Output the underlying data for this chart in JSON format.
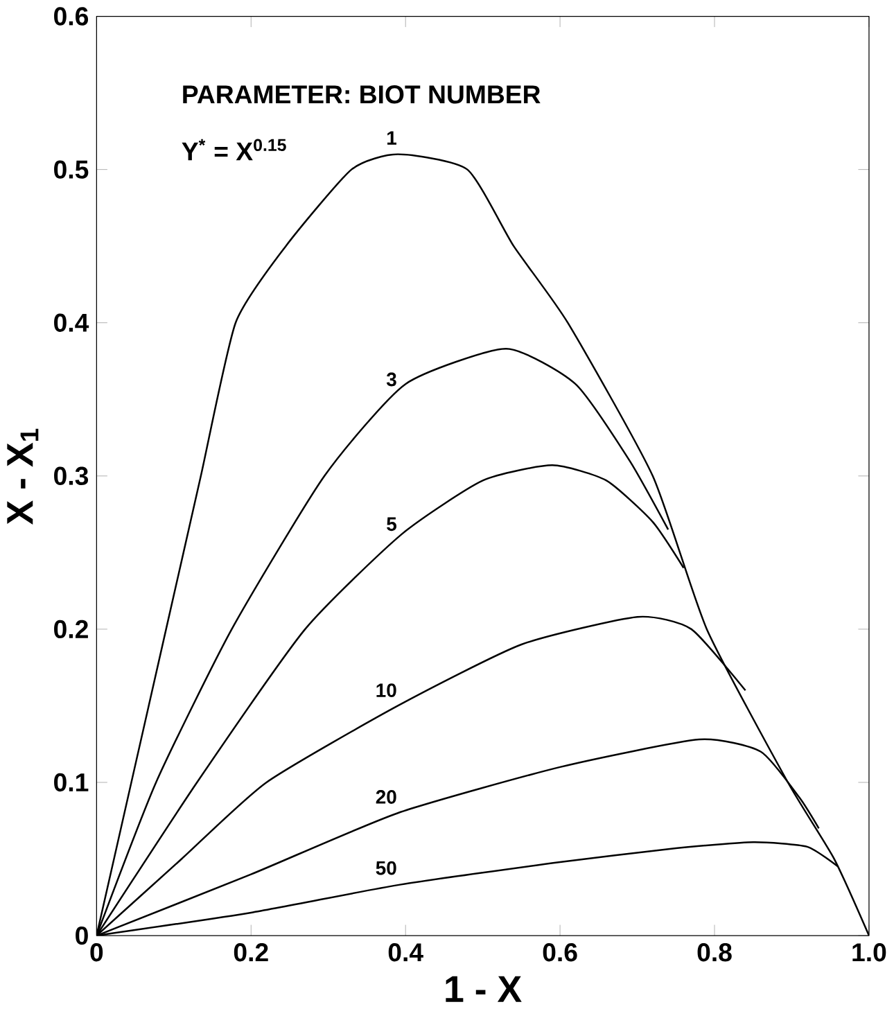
{
  "chart_data": {
    "type": "line",
    "xlabel": "1 - X",
    "ylabel": "X - X$_{1}$",
    "annotations": [
      "PARAMETER: BIOT NUMBER",
      "Y$^{*}$ = X$^{0.15}$"
    ],
    "xlim": [
      0,
      1
    ],
    "ylim": [
      0,
      0.6
    ],
    "xticks": [
      0,
      0.2,
      0.4,
      0.6,
      0.8,
      {
        "value": 1,
        "label": "1.0"
      }
    ],
    "yticks": [
      0,
      0.1,
      0.2,
      0.3,
      0.4,
      0.5,
      0.6
    ],
    "grid": false,
    "legend": false,
    "marker": "none",
    "line_style": "solid",
    "series": [
      {
        "name": "1",
        "color": "#000000",
        "x": [
          0,
          0.045,
          0.09,
          0.135,
          0.18,
          0.245,
          0.33,
          0.39,
          0.48,
          0.54,
          0.61,
          0.72,
          0.79,
          0.895,
          0.955,
          1
        ],
        "values": [
          0,
          0.1,
          0.2,
          0.3,
          0.4,
          0.45,
          0.5,
          0.51,
          0.5,
          0.45,
          0.4,
          0.3,
          0.2,
          0.1,
          0.05,
          0
        ]
      },
      {
        "name": "3",
        "color": "#000000",
        "x": [
          0,
          0.077,
          0.175,
          0.295,
          0.4,
          0.53,
          0.62,
          0.69,
          0.74
        ],
        "values": [
          0,
          0.1,
          0.2,
          0.3,
          0.36,
          0.383,
          0.36,
          0.31,
          0.265
        ]
      },
      {
        "name": "5",
        "color": "#000000",
        "x": [
          0,
          0.13,
          0.27,
          0.395,
          0.5,
          0.59,
          0.66,
          0.72,
          0.76
        ],
        "values": [
          0,
          0.1,
          0.2,
          0.262,
          0.297,
          0.307,
          0.297,
          0.27,
          0.24
        ]
      },
      {
        "name": "10",
        "color": "#000000",
        "x": [
          0,
          0.11,
          0.22,
          0.39,
          0.55,
          0.7,
          0.77,
          0.84
        ],
        "values": [
          0,
          0.05,
          0.1,
          0.15,
          0.19,
          0.208,
          0.2,
          0.16
        ]
      },
      {
        "name": "20",
        "color": "#000000",
        "x": [
          0,
          0.2,
          0.39,
          0.6,
          0.78,
          0.86,
          0.91,
          0.935
        ],
        "values": [
          0,
          0.04,
          0.08,
          0.11,
          0.128,
          0.12,
          0.09,
          0.07
        ]
      },
      {
        "name": "50",
        "color": "#000000",
        "x": [
          0,
          0.2,
          0.39,
          0.6,
          0.75,
          0.85,
          0.92,
          0.96
        ],
        "values": [
          0,
          0.015,
          0.033,
          0.048,
          0.057,
          0.061,
          0.058,
          0.045
        ]
      }
    ]
  }
}
